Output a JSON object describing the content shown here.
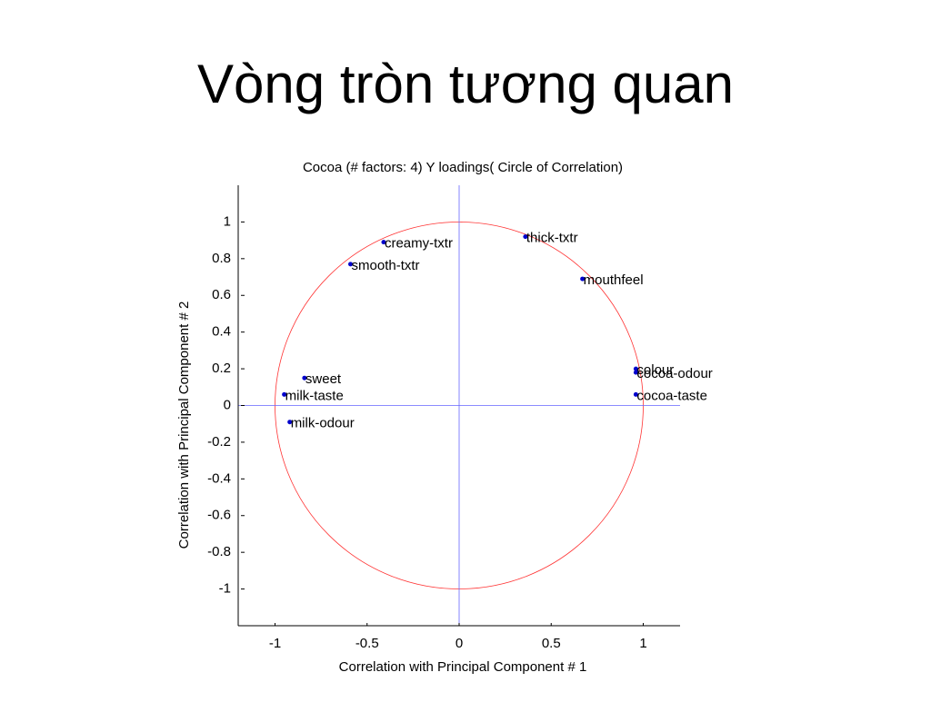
{
  "slide_title": "Vòng tròn tương quan",
  "chart_data": {
    "type": "scatter",
    "title": "Cocoa (# factors: 4) Y loadings( Circle of Correlation)",
    "x_label": "Correlation with Principal Component # 1",
    "y_label": "Correlation with Principal Component # 2",
    "labels": [
      "creamy-txtr",
      "smooth-txtr",
      "thick-txtr",
      "mouthfeel",
      "colour",
      "cocoa-odour",
      "cocoa-taste",
      "sweet",
      "milk-taste",
      "milk-odour"
    ],
    "x": [
      -0.41,
      -0.59,
      0.36,
      0.67,
      0.96,
      0.96,
      0.96,
      -0.84,
      -0.95,
      -0.92
    ],
    "values": [
      0.89,
      0.77,
      0.92,
      0.69,
      0.2,
      0.18,
      0.06,
      0.15,
      0.06,
      -0.09
    ],
    "color": "#0000cc",
    "xlim": [
      -1.2,
      1.2
    ],
    "ylim": [
      -1.2,
      1.2
    ],
    "xticks": [
      -1,
      -0.5,
      0,
      0.5,
      1
    ],
    "yticks": [
      -1,
      -0.8,
      -0.6,
      -0.4,
      -0.2,
      0,
      0.2,
      0.4,
      0.6,
      0.8,
      1
    ]
  }
}
